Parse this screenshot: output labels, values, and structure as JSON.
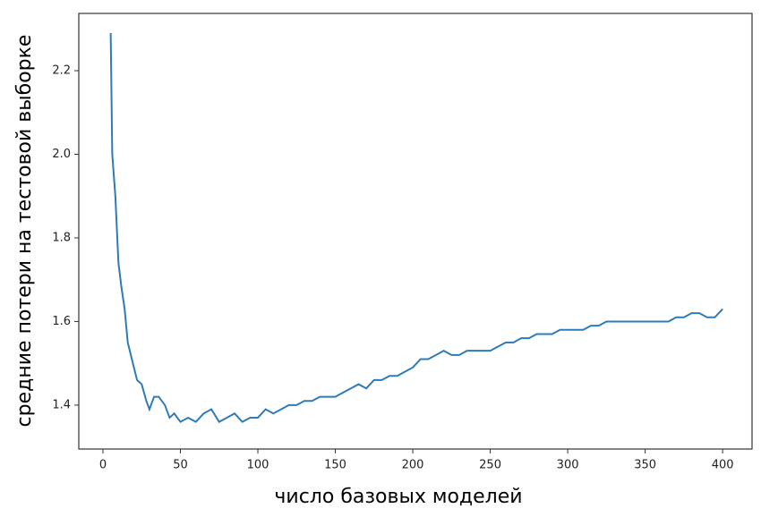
{
  "chart_data": {
    "type": "line",
    "xlabel": "число  базовых  моделей",
    "ylabel": "средние  потери  на  тестовой  выборке",
    "x": [
      5,
      6,
      8,
      10,
      12,
      14,
      16,
      18,
      20,
      22,
      25,
      28,
      30,
      33,
      36,
      40,
      43,
      46,
      50,
      55,
      60,
      65,
      70,
      75,
      80,
      85,
      90,
      95,
      100,
      105,
      110,
      115,
      120,
      125,
      130,
      135,
      140,
      145,
      150,
      155,
      160,
      165,
      170,
      175,
      180,
      185,
      190,
      195,
      200,
      205,
      210,
      215,
      220,
      225,
      230,
      235,
      240,
      245,
      250,
      255,
      260,
      265,
      270,
      275,
      280,
      285,
      290,
      295,
      300,
      305,
      310,
      315,
      320,
      325,
      330,
      335,
      340,
      345,
      350,
      355,
      360,
      365,
      370,
      375,
      380,
      385,
      390,
      395,
      400
    ],
    "series": [
      {
        "color": "#2f7bb8",
        "values": [
          2.29,
          2.0,
          1.9,
          1.74,
          1.68,
          1.63,
          1.55,
          1.52,
          1.49,
          1.46,
          1.45,
          1.41,
          1.39,
          1.42,
          1.42,
          1.4,
          1.37,
          1.38,
          1.36,
          1.37,
          1.36,
          1.38,
          1.39,
          1.36,
          1.37,
          1.38,
          1.36,
          1.37,
          1.37,
          1.39,
          1.38,
          1.39,
          1.4,
          1.4,
          1.41,
          1.41,
          1.42,
          1.42,
          1.42,
          1.43,
          1.44,
          1.45,
          1.44,
          1.46,
          1.46,
          1.47,
          1.47,
          1.48,
          1.49,
          1.51,
          1.51,
          1.52,
          1.53,
          1.52,
          1.52,
          1.53,
          1.53,
          1.53,
          1.53,
          1.54,
          1.55,
          1.55,
          1.56,
          1.56,
          1.57,
          1.57,
          1.57,
          1.58,
          1.58,
          1.58,
          1.58,
          1.59,
          1.59,
          1.6,
          1.6,
          1.6,
          1.6,
          1.6,
          1.6,
          1.6,
          1.6,
          1.6,
          1.61,
          1.61,
          1.62,
          1.62,
          1.61,
          1.61,
          1.63
        ]
      }
    ],
    "xlim": [
      -15.6,
      419
    ],
    "ylim": [
      1.295,
      2.337
    ],
    "xticks": [
      0,
      50,
      100,
      150,
      200,
      250,
      300,
      350,
      400
    ],
    "yticks": [
      1.4,
      1.6,
      1.8,
      {
        "value": 2,
        "label": "2.0"
      },
      2.2
    ]
  }
}
